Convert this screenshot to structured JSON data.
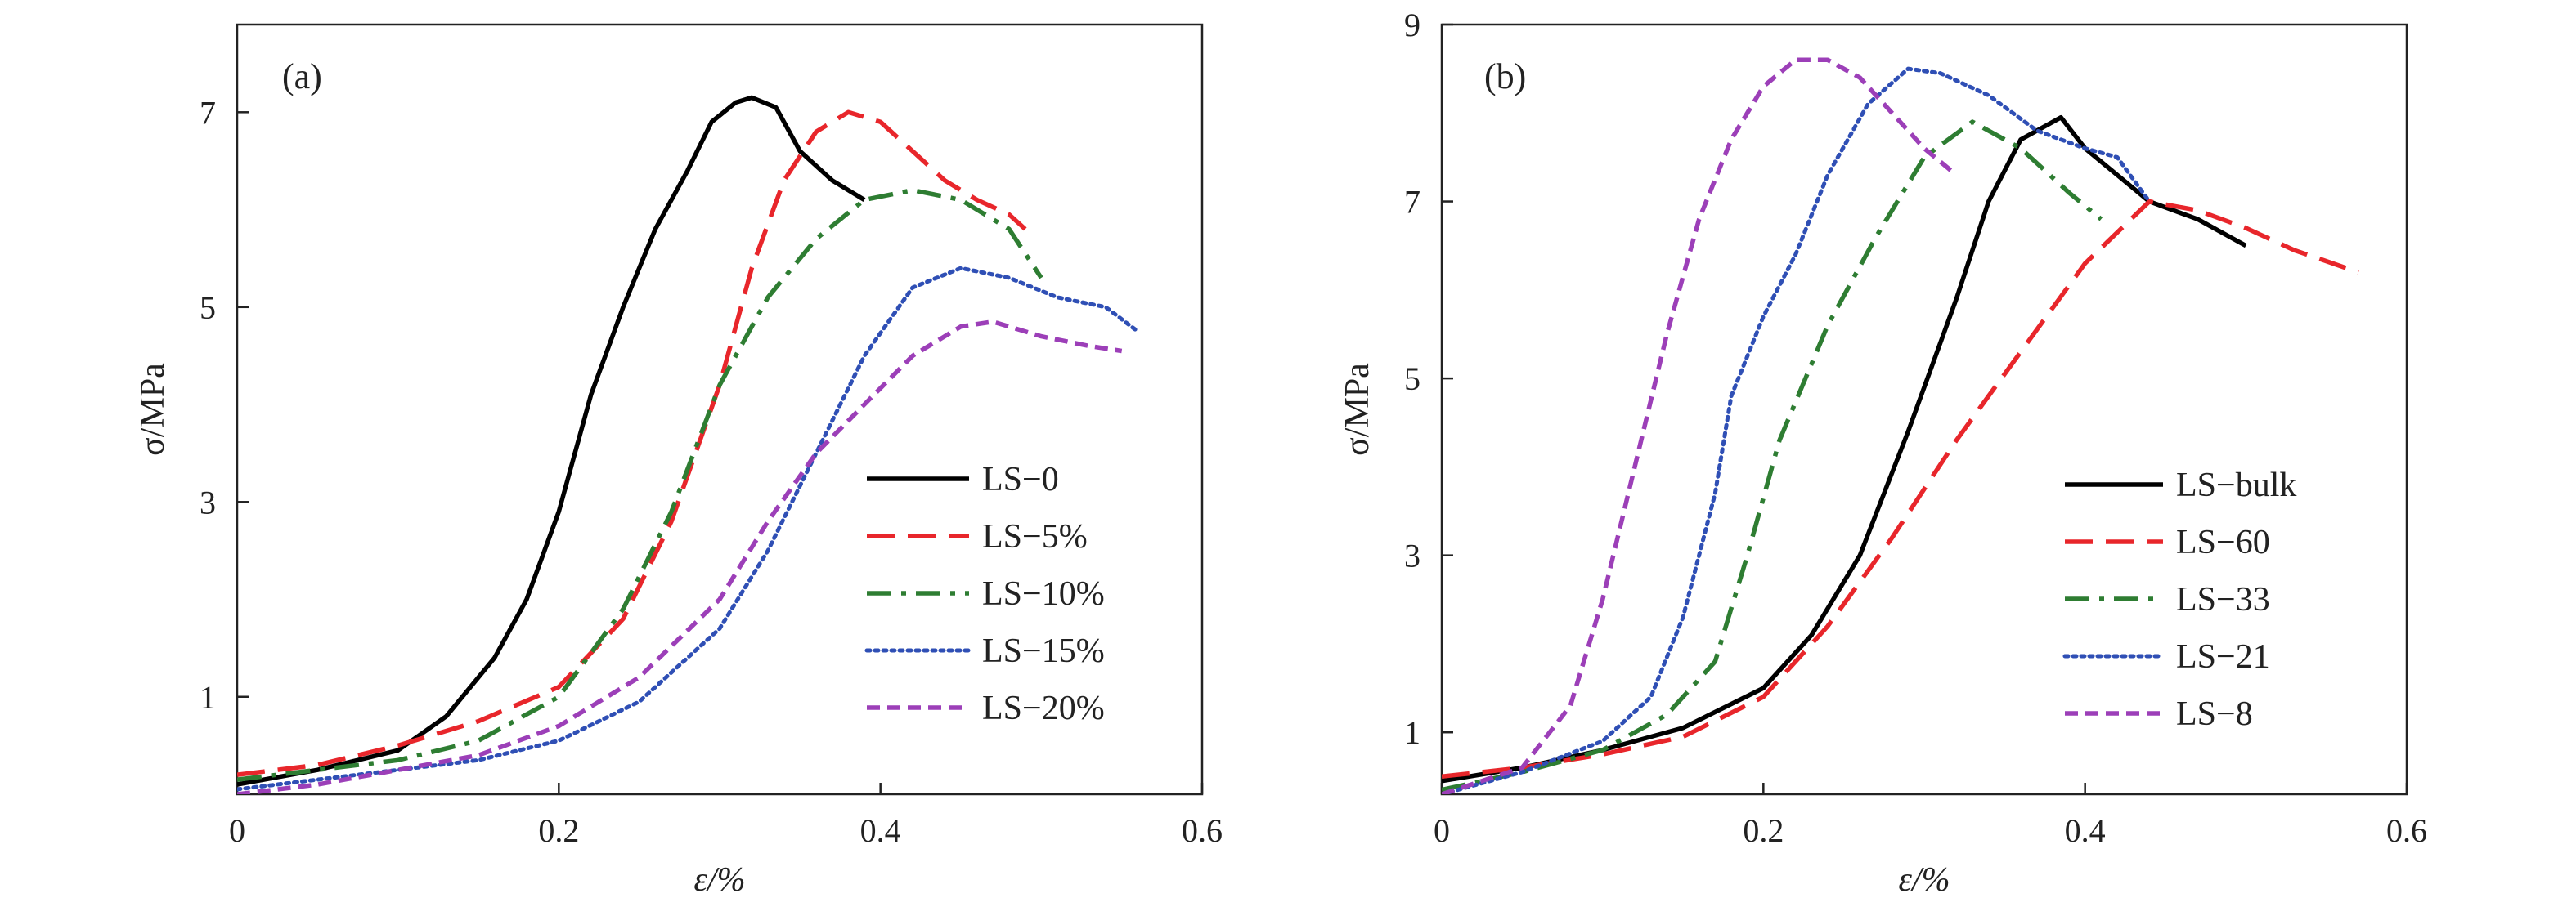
{
  "chart_data": [
    {
      "type": "line",
      "panel_label": "(a)",
      "xlabel": "ε/%",
      "ylabel": "σ/MPa",
      "xlim": [
        0,
        0.6
      ],
      "ylim": [
        0,
        7.9
      ],
      "xticks": [
        0,
        0.2,
        0.4,
        0.6
      ],
      "xtick_labels": [
        "0",
        "0.2",
        "0.4",
        "0.6"
      ],
      "yticks": [
        1,
        3,
        5,
        7
      ],
      "ytick_labels": [
        "1",
        "3",
        "5",
        "7"
      ],
      "legend_position": "lower-right",
      "series": [
        {
          "name": "LS−0",
          "color": "#000000",
          "dash": "solid",
          "points": [
            [
              0,
              0.1
            ],
            [
              0.05,
              0.25
            ],
            [
              0.1,
              0.45
            ],
            [
              0.13,
              0.8
            ],
            [
              0.16,
              1.4
            ],
            [
              0.18,
              2.0
            ],
            [
              0.2,
              2.9
            ],
            [
              0.22,
              4.1
            ],
            [
              0.24,
              5.0
            ],
            [
              0.26,
              5.8
            ],
            [
              0.28,
              6.4
            ],
            [
              0.295,
              6.9
            ],
            [
              0.31,
              7.1
            ],
            [
              0.32,
              7.15
            ],
            [
              0.335,
              7.05
            ],
            [
              0.35,
              6.6
            ],
            [
              0.37,
              6.3
            ],
            [
              0.39,
              6.1
            ]
          ]
        },
        {
          "name": "LS−5%",
          "color": "#e8262b",
          "dash": "dashed",
          "points": [
            [
              0,
              0.2
            ],
            [
              0.05,
              0.3
            ],
            [
              0.1,
              0.5
            ],
            [
              0.15,
              0.75
            ],
            [
              0.2,
              1.1
            ],
            [
              0.24,
              1.8
            ],
            [
              0.27,
              2.8
            ],
            [
              0.3,
              4.2
            ],
            [
              0.32,
              5.4
            ],
            [
              0.34,
              6.3
            ],
            [
              0.36,
              6.8
            ],
            [
              0.38,
              7.0
            ],
            [
              0.4,
              6.9
            ],
            [
              0.42,
              6.6
            ],
            [
              0.44,
              6.3
            ],
            [
              0.46,
              6.1
            ],
            [
              0.48,
              5.95
            ],
            [
              0.49,
              5.8
            ]
          ]
        },
        {
          "name": "LS−10%",
          "color": "#2e7d32",
          "dash": "dashdot",
          "points": [
            [
              0,
              0.15
            ],
            [
              0.05,
              0.25
            ],
            [
              0.1,
              0.35
            ],
            [
              0.15,
              0.55
            ],
            [
              0.2,
              1.0
            ],
            [
              0.24,
              1.9
            ],
            [
              0.27,
              2.9
            ],
            [
              0.3,
              4.2
            ],
            [
              0.33,
              5.1
            ],
            [
              0.36,
              5.7
            ],
            [
              0.39,
              6.1
            ],
            [
              0.42,
              6.2
            ],
            [
              0.45,
              6.1
            ],
            [
              0.48,
              5.8
            ],
            [
              0.5,
              5.3
            ]
          ]
        },
        {
          "name": "LS−15%",
          "color": "#2f4fb5",
          "dash": "dotted",
          "points": [
            [
              0,
              0.05
            ],
            [
              0.05,
              0.15
            ],
            [
              0.1,
              0.25
            ],
            [
              0.15,
              0.35
            ],
            [
              0.2,
              0.55
            ],
            [
              0.25,
              0.95
            ],
            [
              0.3,
              1.7
            ],
            [
              0.33,
              2.5
            ],
            [
              0.36,
              3.5
            ],
            [
              0.39,
              4.5
            ],
            [
              0.42,
              5.2
            ],
            [
              0.45,
              5.4
            ],
            [
              0.48,
              5.3
            ],
            [
              0.51,
              5.1
            ],
            [
              0.54,
              5.0
            ],
            [
              0.56,
              4.75
            ]
          ]
        },
        {
          "name": "LS−20%",
          "color": "#9c3fb8",
          "dash": "shortdash",
          "points": [
            [
              0,
              0.0
            ],
            [
              0.05,
              0.1
            ],
            [
              0.1,
              0.25
            ],
            [
              0.15,
              0.4
            ],
            [
              0.2,
              0.7
            ],
            [
              0.25,
              1.2
            ],
            [
              0.3,
              2.0
            ],
            [
              0.33,
              2.8
            ],
            [
              0.36,
              3.5
            ],
            [
              0.39,
              4.0
            ],
            [
              0.42,
              4.5
            ],
            [
              0.45,
              4.8
            ],
            [
              0.47,
              4.85
            ],
            [
              0.5,
              4.7
            ],
            [
              0.53,
              4.6
            ],
            [
              0.55,
              4.55
            ]
          ]
        }
      ]
    },
    {
      "type": "line",
      "panel_label": "(b)",
      "xlabel": "ε/%",
      "ylabel": "σ/MPa",
      "xlim": [
        0,
        0.6
      ],
      "ylim": [
        0.3,
        9
      ],
      "xticks": [
        0,
        0.2,
        0.4,
        0.6
      ],
      "xtick_labels": [
        "0",
        "0.2",
        "0.4",
        "0.6"
      ],
      "yticks": [
        1,
        3,
        5,
        7,
        9
      ],
      "ytick_labels": [
        "1",
        "3",
        "5",
        "7",
        "9"
      ],
      "legend_position": "lower-right",
      "series": [
        {
          "name": "LS−bulk",
          "color": "#000000",
          "dash": "solid",
          "points": [
            [
              0,
              0.45
            ],
            [
              0.05,
              0.6
            ],
            [
              0.1,
              0.8
            ],
            [
              0.15,
              1.05
            ],
            [
              0.2,
              1.5
            ],
            [
              0.23,
              2.1
            ],
            [
              0.26,
              3.0
            ],
            [
              0.29,
              4.4
            ],
            [
              0.32,
              5.9
            ],
            [
              0.34,
              7.0
            ],
            [
              0.36,
              7.7
            ],
            [
              0.385,
              7.95
            ],
            [
              0.4,
              7.6
            ],
            [
              0.42,
              7.3
            ],
            [
              0.44,
              7.0
            ],
            [
              0.47,
              6.8
            ],
            [
              0.5,
              6.5
            ]
          ]
        },
        {
          "name": "LS−60",
          "color": "#e8262b",
          "dash": "dashed",
          "points": [
            [
              0,
              0.5
            ],
            [
              0.05,
              0.6
            ],
            [
              0.1,
              0.75
            ],
            [
              0.15,
              0.95
            ],
            [
              0.2,
              1.4
            ],
            [
              0.24,
              2.2
            ],
            [
              0.28,
              3.2
            ],
            [
              0.32,
              4.3
            ],
            [
              0.36,
              5.3
            ],
            [
              0.4,
              6.3
            ],
            [
              0.44,
              7.0
            ],
            [
              0.47,
              6.9
            ],
            [
              0.5,
              6.7
            ],
            [
              0.53,
              6.45
            ],
            [
              0.57,
              6.2
            ]
          ]
        },
        {
          "name": "LS−33",
          "color": "#2e7d32",
          "dash": "dashdot",
          "points": [
            [
              0,
              0.35
            ],
            [
              0.05,
              0.55
            ],
            [
              0.1,
              0.8
            ],
            [
              0.14,
              1.2
            ],
            [
              0.17,
              1.8
            ],
            [
              0.19,
              3.0
            ],
            [
              0.21,
              4.3
            ],
            [
              0.24,
              5.6
            ],
            [
              0.27,
              6.6
            ],
            [
              0.3,
              7.5
            ],
            [
              0.33,
              7.9
            ],
            [
              0.36,
              7.6
            ],
            [
              0.39,
              7.1
            ],
            [
              0.41,
              6.8
            ]
          ]
        },
        {
          "name": "LS−21",
          "color": "#2f4fb5",
          "dash": "dotted",
          "points": [
            [
              0,
              0.3
            ],
            [
              0.05,
              0.55
            ],
            [
              0.1,
              0.9
            ],
            [
              0.13,
              1.4
            ],
            [
              0.15,
              2.3
            ],
            [
              0.17,
              3.7
            ],
            [
              0.18,
              4.8
            ],
            [
              0.2,
              5.7
            ],
            [
              0.22,
              6.4
            ],
            [
              0.24,
              7.3
            ],
            [
              0.265,
              8.1
            ],
            [
              0.29,
              8.5
            ],
            [
              0.31,
              8.45
            ],
            [
              0.34,
              8.2
            ],
            [
              0.37,
              7.8
            ],
            [
              0.4,
              7.6
            ],
            [
              0.42,
              7.5
            ],
            [
              0.44,
              7.0
            ]
          ]
        },
        {
          "name": "LS−8",
          "color": "#9c3fb8",
          "dash": "shortdash",
          "points": [
            [
              0,
              0.3
            ],
            [
              0.05,
              0.6
            ],
            [
              0.08,
              1.3
            ],
            [
              0.1,
              2.5
            ],
            [
              0.12,
              4.0
            ],
            [
              0.14,
              5.5
            ],
            [
              0.16,
              6.8
            ],
            [
              0.18,
              7.7
            ],
            [
              0.2,
              8.3
            ],
            [
              0.22,
              8.6
            ],
            [
              0.24,
              8.6
            ],
            [
              0.26,
              8.4
            ],
            [
              0.28,
              8.0
            ],
            [
              0.3,
              7.6
            ],
            [
              0.32,
              7.3
            ]
          ]
        }
      ]
    }
  ]
}
